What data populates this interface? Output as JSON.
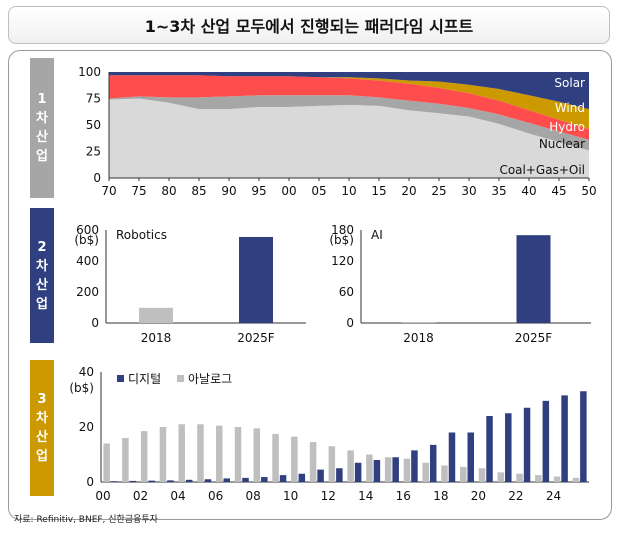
{
  "title": "1~3차 산업 모두에서 진행되는 패러다임 시프트",
  "source": "자료: Refinitiv, BNEF, 신한금융투자",
  "sections": [
    {
      "label": [
        "1",
        "차",
        "산",
        "업"
      ],
      "color": "#a6a6a6"
    },
    {
      "label": [
        "2",
        "차",
        "산",
        "업"
      ],
      "color": "#2f3f7f"
    },
    {
      "label": [
        "3",
        "차",
        "산",
        "업"
      ],
      "color": "#cc9900"
    }
  ],
  "chart_data": [
    {
      "type": "area",
      "x": [
        1970,
        1975,
        1980,
        1985,
        1990,
        1995,
        2000,
        2005,
        2010,
        2015,
        2020,
        2025,
        2030,
        2035,
        2040,
        2045,
        2050
      ],
      "x_tick_labels": [
        "70",
        "75",
        "80",
        "85",
        "90",
        "95",
        "00",
        "05",
        "10",
        "15",
        "20",
        "25",
        "30",
        "35",
        "40",
        "45",
        "50"
      ],
      "ylim": [
        0,
        100
      ],
      "y_ticks": [
        0,
        25,
        50,
        75,
        100
      ],
      "series": [
        {
          "name": "Coal+Gas+Oil",
          "color": "#d9d9d9",
          "values": [
            74,
            75,
            71,
            65,
            65,
            67,
            67,
            68,
            69,
            68,
            64,
            61,
            58,
            51,
            42,
            34,
            26
          ]
        },
        {
          "name": "Nuclear",
          "color": "#a6a6a6",
          "values": [
            1,
            2,
            5,
            11,
            12,
            11,
            11,
            10,
            9,
            8,
            9,
            9,
            8,
            9,
            10,
            10,
            10
          ]
        },
        {
          "name": "Hydro",
          "color": "#ff4d4d",
          "values": [
            22,
            20,
            21,
            21,
            19,
            18,
            18,
            17,
            16,
            16,
            16,
            15,
            14,
            13,
            12,
            11,
            10
          ]
        },
        {
          "name": "Wind",
          "color": "#cc9900",
          "values": [
            0,
            0,
            0,
            0,
            0,
            0,
            0,
            0,
            1,
            2,
            3,
            6,
            8,
            11,
            14,
            17,
            19
          ]
        },
        {
          "name": "Solar",
          "color": "#2f3f7f",
          "values": [
            3,
            3,
            3,
            3,
            4,
            4,
            4,
            5,
            5,
            6,
            8,
            9,
            12,
            16,
            22,
            28,
            35
          ]
        }
      ]
    },
    {
      "type": "bar",
      "title": "Robotics",
      "ylabel": "(b$)",
      "categories": [
        "2018",
        "2025F"
      ],
      "colors": [
        "#bfbfbf",
        "#2f3f7f"
      ],
      "values": [
        98,
        555
      ],
      "ylim": [
        0,
        600
      ],
      "y_ticks": [
        0,
        200,
        400,
        600
      ]
    },
    {
      "type": "bar",
      "title": "AI",
      "ylabel": "(b$)",
      "categories": [
        "2018",
        "2025F"
      ],
      "colors": [
        "#bfbfbf",
        "#2f3f7f"
      ],
      "values": [
        2,
        170
      ],
      "ylim": [
        0,
        180
      ],
      "y_ticks": [
        0,
        60,
        120,
        180
      ]
    },
    {
      "type": "bar",
      "ylabel": "(b$)",
      "categories": [
        "00",
        "01",
        "02",
        "03",
        "04",
        "05",
        "06",
        "07",
        "08",
        "09",
        "10",
        "11",
        "12",
        "13",
        "14",
        "15",
        "16",
        "17",
        "18",
        "19",
        "20",
        "21",
        "22",
        "23",
        "24",
        "25"
      ],
      "x_tick_labels": [
        "00",
        "02",
        "04",
        "06",
        "08",
        "10",
        "12",
        "14",
        "16",
        "18",
        "20",
        "22",
        "24"
      ],
      "ylim": [
        0,
        40
      ],
      "y_ticks": [
        0,
        20,
        40
      ],
      "series": [
        {
          "name": "디지털",
          "color": "#2f3f7f",
          "values": [
            0.3,
            0.4,
            0.5,
            0.6,
            0.8,
            1,
            1.3,
            1.5,
            1.8,
            2.5,
            3,
            4.5,
            5,
            7,
            8,
            9,
            11.5,
            13.5,
            18,
            18,
            24,
            25,
            27,
            29.5,
            31.5,
            33
          ]
        },
        {
          "name": "아날로그",
          "color": "#bfbfbf",
          "values": [
            14,
            16,
            18.5,
            20,
            21,
            21,
            20.5,
            20,
            19.5,
            17.5,
            16.5,
            14.5,
            13,
            11.5,
            10,
            9,
            8.5,
            7,
            6,
            5.5,
            5,
            3.5,
            3,
            2.5,
            2,
            1.5
          ]
        }
      ]
    }
  ]
}
